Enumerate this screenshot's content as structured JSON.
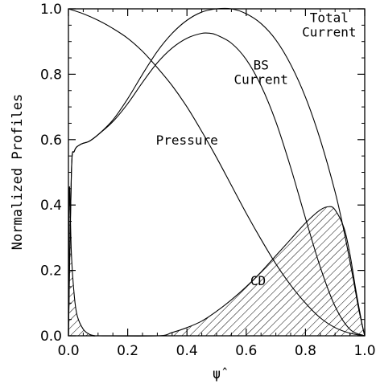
{
  "chart_data": {
    "type": "line",
    "title": "",
    "xlabel": "ψ̂",
    "ylabel": "Normalized Profiles",
    "xlim": [
      0.0,
      1.0
    ],
    "ylim": [
      0.0,
      1.0
    ],
    "grid": false,
    "legend": "none",
    "xticks": [
      "0.0",
      "0.2",
      "0.4",
      "0.6",
      "0.8",
      "1.0"
    ],
    "yticks": [
      "0.0",
      "0.2",
      "0.4",
      "0.6",
      "0.8",
      "1.0"
    ],
    "series": [
      {
        "name": "Pressure",
        "x": [
          0.0,
          0.05,
          0.1,
          0.15,
          0.2,
          0.25,
          0.3,
          0.35,
          0.4,
          0.45,
          0.5,
          0.55,
          0.6,
          0.65,
          0.7,
          0.75,
          0.8,
          0.85,
          0.9,
          0.95,
          1.0
        ],
        "y": [
          1.0,
          0.985,
          0.965,
          0.94,
          0.91,
          0.87,
          0.82,
          0.765,
          0.7,
          0.625,
          0.545,
          0.46,
          0.375,
          0.295,
          0.22,
          0.155,
          0.1,
          0.055,
          0.025,
          0.008,
          0.0
        ]
      },
      {
        "name": "BS Current",
        "x": [
          0.0,
          0.01,
          0.02,
          0.04,
          0.07,
          0.1,
          0.15,
          0.2,
          0.25,
          0.3,
          0.35,
          0.4,
          0.45,
          0.48,
          0.5,
          0.55,
          0.6,
          0.65,
          0.7,
          0.75,
          0.8,
          0.85,
          0.9,
          0.95,
          1.0
        ],
        "y": [
          0.0,
          0.5,
          0.565,
          0.585,
          0.595,
          0.615,
          0.655,
          0.71,
          0.775,
          0.835,
          0.88,
          0.91,
          0.925,
          0.925,
          0.92,
          0.895,
          0.845,
          0.765,
          0.655,
          0.515,
          0.36,
          0.21,
          0.09,
          0.02,
          0.0
        ]
      },
      {
        "name": "Total Current",
        "x": [
          0.0,
          0.01,
          0.02,
          0.04,
          0.07,
          0.1,
          0.15,
          0.2,
          0.25,
          0.3,
          0.35,
          0.4,
          0.45,
          0.5,
          0.55,
          0.6,
          0.65,
          0.7,
          0.75,
          0.8,
          0.85,
          0.9,
          0.93,
          0.96,
          0.98,
          1.0
        ],
        "y": [
          0.0,
          0.5,
          0.565,
          0.585,
          0.595,
          0.615,
          0.66,
          0.725,
          0.8,
          0.87,
          0.925,
          0.965,
          0.99,
          1.0,
          1.0,
          0.985,
          0.955,
          0.905,
          0.83,
          0.73,
          0.6,
          0.44,
          0.32,
          0.18,
          0.08,
          0.0
        ]
      },
      {
        "name": "CD",
        "x": [
          0.0,
          0.003,
          0.01,
          0.02,
          0.03,
          0.05,
          0.07,
          0.09,
          0.1,
          0.3,
          0.35,
          0.4,
          0.45,
          0.5,
          0.55,
          0.6,
          0.65,
          0.7,
          0.75,
          0.8,
          0.85,
          0.88,
          0.9,
          0.93,
          0.95,
          0.97,
          0.99,
          1.0
        ],
        "y": [
          0.0,
          0.45,
          0.25,
          0.12,
          0.06,
          0.02,
          0.005,
          0.0,
          0.0,
          0.0,
          0.01,
          0.025,
          0.045,
          0.075,
          0.11,
          0.15,
          0.195,
          0.245,
          0.295,
          0.345,
          0.385,
          0.395,
          0.385,
          0.33,
          0.25,
          0.14,
          0.04,
          0.0
        ]
      }
    ],
    "annotations": [
      {
        "text": "Total",
        "x": 0.88,
        "y": 0.96
      },
      {
        "text": "Current",
        "x": 0.88,
        "y": 0.915
      },
      {
        "text": "BS",
        "x": 0.65,
        "y": 0.815
      },
      {
        "text": "Current",
        "x": 0.65,
        "y": 0.77
      },
      {
        "text": "Pressure",
        "x": 0.4,
        "y": 0.585
      },
      {
        "text": "CD",
        "x": 0.64,
        "y": 0.155
      }
    ]
  }
}
